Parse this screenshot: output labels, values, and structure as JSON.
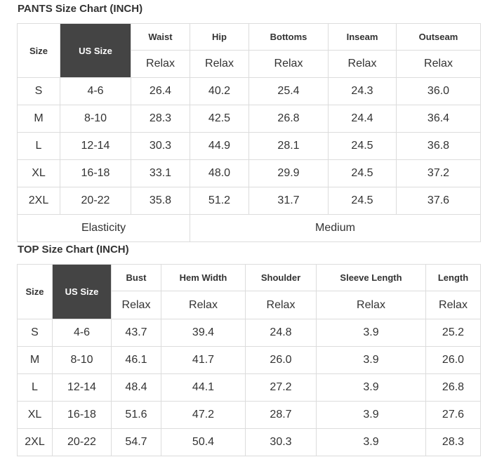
{
  "pants": {
    "title": "PANTS Size Chart (INCH)",
    "size_header": "Size",
    "us_size_header": "US Size",
    "columns": [
      "Waist",
      "Hip",
      "Bottoms",
      "Inseam",
      "Outseam"
    ],
    "subheader": [
      "Relax",
      "Relax",
      "Relax",
      "Relax",
      "Relax"
    ],
    "rows": [
      {
        "size": "S",
        "us": "4-6",
        "values": [
          "26.4",
          "40.2",
          "25.4",
          "24.3",
          "36.0"
        ]
      },
      {
        "size": "M",
        "us": "8-10",
        "values": [
          "28.3",
          "42.5",
          "26.8",
          "24.4",
          "36.4"
        ]
      },
      {
        "size": "L",
        "us": "12-14",
        "values": [
          "30.3",
          "44.9",
          "28.1",
          "24.5",
          "36.8"
        ]
      },
      {
        "size": "XL",
        "us": "16-18",
        "values": [
          "33.1",
          "48.0",
          "29.9",
          "24.5",
          "37.2"
        ]
      },
      {
        "size": "2XL",
        "us": "20-22",
        "values": [
          "35.8",
          "51.2",
          "31.7",
          "24.5",
          "37.6"
        ]
      }
    ],
    "elasticity_label": "Elasticity",
    "elasticity_value": "Medium"
  },
  "top": {
    "title": "TOP Size Chart (INCH)",
    "size_header": "Size",
    "us_size_header": "US Size",
    "columns": [
      "Bust",
      "Hem Width",
      "Shoulder",
      "Sleeve Length",
      "Length"
    ],
    "subheader": [
      "Relax",
      "Relax",
      "Relax",
      "Relax",
      "Relax"
    ],
    "rows": [
      {
        "size": "S",
        "us": "4-6",
        "values": [
          "43.7",
          "39.4",
          "24.8",
          "3.9",
          "25.2"
        ]
      },
      {
        "size": "M",
        "us": "8-10",
        "values": [
          "46.1",
          "41.7",
          "26.0",
          "3.9",
          "26.0"
        ]
      },
      {
        "size": "L",
        "us": "12-14",
        "values": [
          "48.4",
          "44.1",
          "27.2",
          "3.9",
          "26.8"
        ]
      },
      {
        "size": "XL",
        "us": "16-18",
        "values": [
          "51.6",
          "47.2",
          "28.7",
          "3.9",
          "27.6"
        ]
      },
      {
        "size": "2XL",
        "us": "20-22",
        "values": [
          "54.7",
          "50.4",
          "30.3",
          "3.9",
          "28.3"
        ]
      }
    ]
  }
}
